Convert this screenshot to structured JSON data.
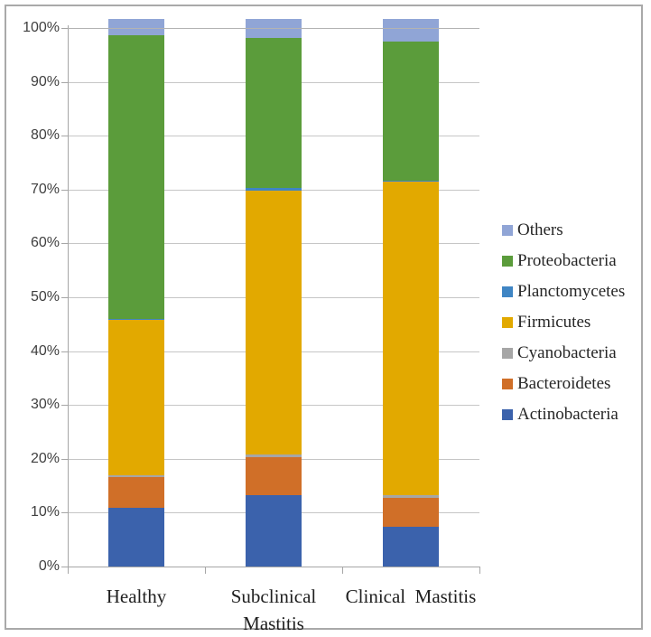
{
  "chart_data": {
    "type": "bar",
    "subtype": "100-percent-stacked-vertical",
    "title": "",
    "xlabel": "",
    "ylabel": "",
    "ylim": [
      0,
      100
    ],
    "grid": true,
    "legend_position": "right",
    "y_ticks": [
      "0%",
      "10%",
      "20%",
      "30%",
      "40%",
      "50%",
      "60%",
      "70%",
      "80%",
      "90%",
      "100%"
    ],
    "categories": [
      "Healthy",
      "Subclinical Mastitis",
      "Clinical  Mastitis"
    ],
    "series": [
      {
        "name": "Actinobacteria",
        "color": "#3b62ac",
        "values": [
          10.7,
          13.0,
          7.3
        ]
      },
      {
        "name": "Bacteroidetes",
        "color": "#d06f28",
        "values": [
          5.7,
          6.9,
          5.3
        ]
      },
      {
        "name": "Cyanobacteria",
        "color": "#a6a6a6",
        "values": [
          0.3,
          0.5,
          0.4
        ]
      },
      {
        "name": "Firmicutes",
        "color": "#e2a900",
        "values": [
          28.3,
          48.2,
          57.3
        ]
      },
      {
        "name": "Planctomycetes",
        "color": "#3f85c4",
        "values": [
          0.2,
          0.5,
          0.2
        ]
      },
      {
        "name": "Proteobacteria",
        "color": "#5b9c3b",
        "values": [
          51.8,
          27.4,
          25.3
        ]
      },
      {
        "name": "Others",
        "color": "#90a5d6",
        "values": [
          3.0,
          3.5,
          4.2
        ]
      }
    ],
    "legend_order_top_to_bottom": [
      "Others",
      "Proteobacteria",
      "Planctomycetes",
      "Firmicutes",
      "Cyanobacteria",
      "Bacteroidetes",
      "Actinobacteria"
    ],
    "frame_color": "#a9a9a9",
    "gridline_color": "#c6c6c6",
    "axis_color": "#a6a6a6"
  }
}
